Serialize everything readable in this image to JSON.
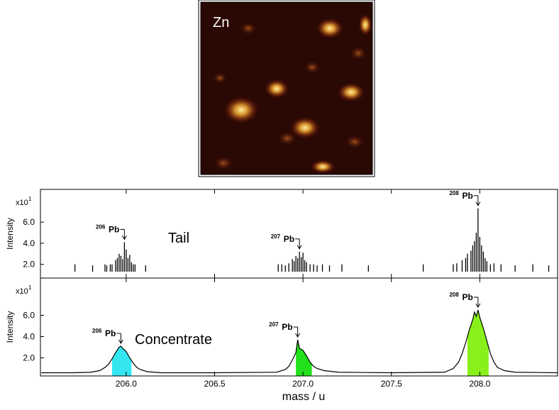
{
  "image": {
    "label": "Zn"
  },
  "chart_data": [
    {
      "type": "stem",
      "label": "Tail",
      "ylabel": "Intensity",
      "multiplier": {
        "base": "x10",
        "exponent": "1"
      },
      "xlim": [
        205.515,
        208.44
      ],
      "ylim": [
        0.7,
        9.1
      ],
      "yticks": [
        {
          "value": 2,
          "label": "2.0"
        },
        {
          "value": 4,
          "label": "4.0"
        },
        {
          "value": 6,
          "label": "6.0"
        }
      ],
      "color": "#000000",
      "x": [
        205.71,
        205.81,
        205.88,
        205.89,
        205.91,
        205.92,
        205.94,
        205.95,
        205.96,
        205.97,
        205.98,
        205.99,
        206.0,
        206.01,
        206.02,
        206.03,
        206.04,
        206.05,
        206.11,
        206.86,
        206.88,
        206.9,
        206.92,
        206.94,
        206.95,
        206.96,
        206.97,
        206.98,
        206.99,
        207.0,
        207.01,
        207.02,
        207.04,
        207.06,
        207.08,
        207.11,
        207.15,
        207.22,
        207.37,
        207.68,
        207.85,
        207.87,
        207.9,
        207.92,
        207.93,
        207.95,
        207.96,
        207.97,
        207.98,
        207.99,
        208.0,
        208.01,
        208.02,
        208.03,
        208.04,
        208.06,
        208.08,
        208.12,
        208.2,
        208.3,
        208.39
      ],
      "values": [
        2.0,
        1.9,
        2.0,
        1.9,
        2.0,
        2.0,
        2.4,
        2.6,
        3.0,
        2.8,
        2.5,
        4.1,
        3.4,
        2.6,
        2.9,
        2.2,
        2.0,
        2.0,
        1.9,
        2.0,
        2.0,
        1.9,
        2.1,
        2.5,
        2.3,
        2.8,
        2.6,
        3.2,
        2.7,
        3.1,
        2.4,
        2.2,
        2.0,
        2.0,
        1.9,
        2.0,
        1.9,
        2.0,
        1.9,
        2.0,
        2.0,
        2.1,
        2.4,
        2.6,
        3.0,
        3.3,
        3.8,
        4.2,
        5.0,
        7.3,
        4.6,
        3.8,
        3.2,
        2.6,
        2.3,
        2.0,
        2.1,
        2.0,
        1.9,
        2.0,
        1.9
      ],
      "annotations": [
        {
          "isotope": "206",
          "element": "Pb",
          "x": 205.99
        },
        {
          "isotope": "207",
          "element": "Pb",
          "x": 206.98
        },
        {
          "isotope": "208",
          "element": "Pb",
          "x": 207.99
        }
      ]
    },
    {
      "type": "line",
      "label": "Concentrate",
      "ylabel": "Intensity",
      "xlabel": "mass / u",
      "multiplier": {
        "base": "x10",
        "exponent": "1"
      },
      "xlim": [
        205.515,
        208.44
      ],
      "ylim": [
        0.3,
        9.5
      ],
      "xticks": [
        {
          "value": 206,
          "label": "206.0"
        },
        206.5,
        {
          "value": 207,
          "label": "207.0"
        },
        207.5,
        {
          "value": 208,
          "label": "208.0"
        }
      ],
      "yticks": [
        {
          "value": 2,
          "label": "2.0"
        },
        {
          "value": 4,
          "label": "4.0"
        },
        {
          "value": 6,
          "label": "6.0"
        }
      ],
      "color": "#000000",
      "x": [
        205.52,
        205.7,
        205.8,
        205.85,
        205.88,
        205.9,
        205.92,
        205.94,
        205.96,
        205.97,
        205.98,
        206.0,
        206.02,
        206.04,
        206.06,
        206.08,
        206.12,
        206.2,
        206.5,
        206.85,
        206.9,
        206.92,
        206.94,
        206.96,
        206.97,
        206.98,
        207.0,
        207.02,
        207.04,
        207.06,
        207.08,
        207.12,
        207.2,
        207.5,
        207.8,
        207.85,
        207.88,
        207.9,
        207.92,
        207.94,
        207.96,
        207.97,
        207.98,
        207.99,
        208.0,
        208.02,
        208.04,
        208.06,
        208.08,
        208.1,
        208.14,
        208.2,
        208.44
      ],
      "values": [
        0.6,
        0.6,
        0.65,
        0.8,
        1.1,
        1.4,
        1.9,
        2.5,
        3.0,
        3.1,
        2.9,
        2.6,
        2.0,
        1.5,
        1.1,
        0.9,
        0.7,
        0.6,
        0.6,
        0.65,
        0.9,
        1.2,
        1.8,
        2.5,
        3.7,
        2.9,
        2.7,
        2.2,
        1.6,
        1.2,
        1.0,
        0.8,
        0.65,
        0.6,
        0.65,
        1.0,
        1.6,
        2.4,
        3.4,
        4.6,
        5.6,
        6.3,
        5.9,
        6.5,
        5.8,
        4.8,
        3.6,
        2.4,
        1.6,
        1.1,
        0.8,
        0.65,
        0.6
      ],
      "regions": [
        {
          "x0": 205.92,
          "x1": 206.03,
          "color": "#33e6f0"
        },
        {
          "x0": 206.96,
          "x1": 207.05,
          "color": "#22e01a"
        },
        {
          "x0": 207.93,
          "x1": 208.05,
          "color": "#88f01a"
        }
      ],
      "annotations": [
        {
          "isotope": "206",
          "element": "Pb",
          "x": 205.97
        },
        {
          "isotope": "207",
          "element": "Pb",
          "x": 206.97
        },
        {
          "isotope": "208",
          "element": "Pb",
          "x": 207.99
        }
      ]
    }
  ]
}
